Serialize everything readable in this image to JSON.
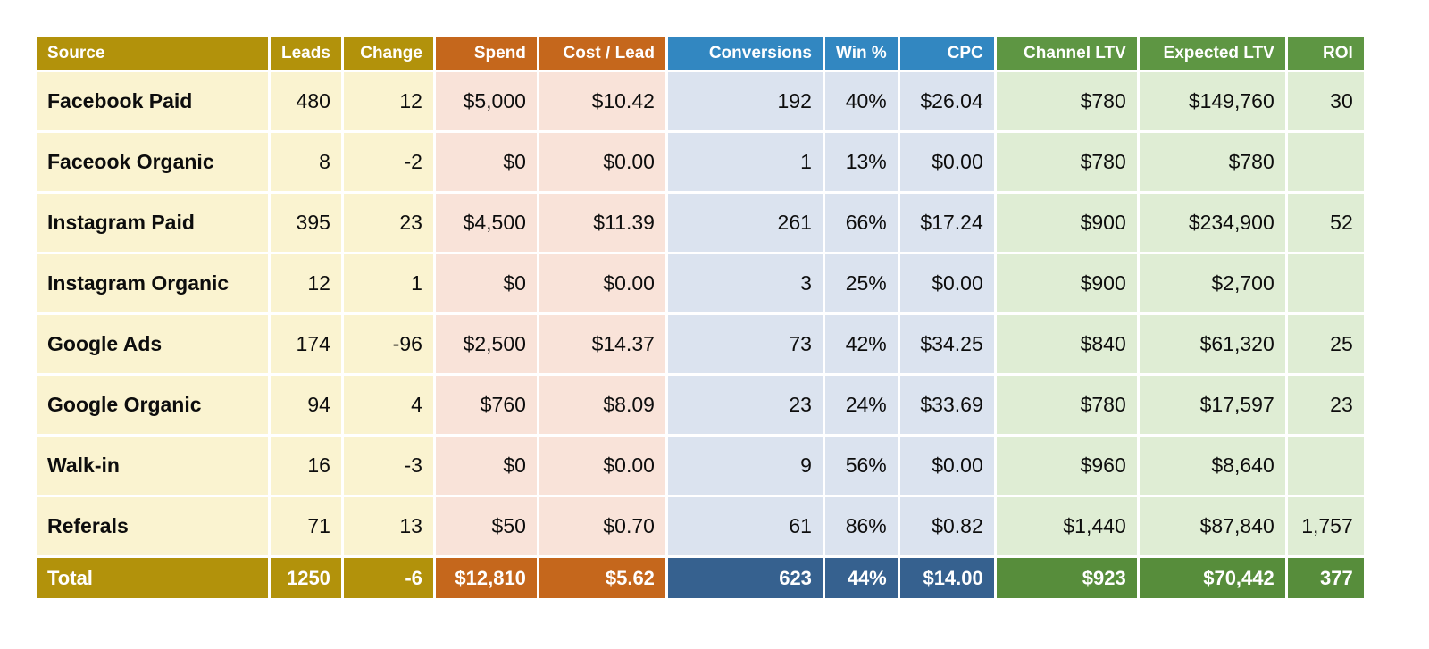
{
  "table": {
    "columns": [
      {
        "label": "Source",
        "group": "gold"
      },
      {
        "label": "Leads",
        "group": "gold"
      },
      {
        "label": "Change",
        "group": "gold"
      },
      {
        "label": "Spend",
        "group": "orange"
      },
      {
        "label": "Cost / Lead",
        "group": "orange"
      },
      {
        "label": "Conversions",
        "group": "blue"
      },
      {
        "label": "Win %",
        "group": "blue"
      },
      {
        "label": "CPC",
        "group": "blue"
      },
      {
        "label": "Channel LTV",
        "group": "green"
      },
      {
        "label": "Expected LTV",
        "group": "green"
      },
      {
        "label": "ROI",
        "group": "green"
      }
    ],
    "rows": [
      [
        "Facebook Paid",
        "480",
        "12",
        "$5,000",
        "$10.42",
        "192",
        "40%",
        "$26.04",
        "$780",
        "$149,760",
        "30"
      ],
      [
        "Faceook Organic",
        "8",
        "-2",
        "$0",
        "$0.00",
        "1",
        "13%",
        "$0.00",
        "$780",
        "$780",
        ""
      ],
      [
        "Instagram Paid",
        "395",
        "23",
        "$4,500",
        "$11.39",
        "261",
        "66%",
        "$17.24",
        "$900",
        "$234,900",
        "52"
      ],
      [
        "Instagram Organic",
        "12",
        "1",
        "$0",
        "$0.00",
        "3",
        "25%",
        "$0.00",
        "$900",
        "$2,700",
        ""
      ],
      [
        "Google Ads",
        "174",
        "-96",
        "$2,500",
        "$14.37",
        "73",
        "42%",
        "$34.25",
        "$840",
        "$61,320",
        "25"
      ],
      [
        "Google Organic",
        "94",
        "4",
        "$760",
        "$8.09",
        "23",
        "24%",
        "$33.69",
        "$780",
        "$17,597",
        "23"
      ],
      [
        "Walk-in",
        "16",
        "-3",
        "$0",
        "$0.00",
        "9",
        "56%",
        "$0.00",
        "$960",
        "$8,640",
        ""
      ],
      [
        "Referals",
        "71",
        "13",
        "$50",
        "$0.70",
        "61",
        "86%",
        "$0.82",
        "$1,440",
        "$87,840",
        "1,757"
      ]
    ],
    "total": [
      "Total",
      "1250",
      "-6",
      "$12,810",
      "$5.62",
      "623",
      "44%",
      "$14.00",
      "$923",
      "$70,442",
      "377"
    ]
  },
  "colors": {
    "gold": "#B2920B",
    "gold_light": "#FAF3D0",
    "orange": "#C5671C",
    "orange_light": "#F9E3D9",
    "blue": "#3287C1",
    "blue_light": "#DBE3EF",
    "blue_total": "#36618F",
    "green": "#5E9643",
    "green_total": "#578D3B",
    "green_light": "#DFEDD4"
  },
  "chart_data": {
    "type": "table",
    "columns": [
      "Source",
      "Leads",
      "Change",
      "Spend",
      "Cost / Lead",
      "Conversions",
      "Win %",
      "CPC",
      "Channel LTV",
      "Expected LTV",
      "ROI"
    ],
    "rows": [
      [
        "Facebook Paid",
        480,
        12,
        "$5,000",
        "$10.42",
        192,
        "40%",
        "$26.04",
        "$780",
        "$149,760",
        30
      ],
      [
        "Faceook Organic",
        8,
        -2,
        "$0",
        "$0.00",
        1,
        "13%",
        "$0.00",
        "$780",
        "$780",
        null
      ],
      [
        "Instagram Paid",
        395,
        23,
        "$4,500",
        "$11.39",
        261,
        "66%",
        "$17.24",
        "$900",
        "$234,900",
        52
      ],
      [
        "Instagram Organic",
        12,
        1,
        "$0",
        "$0.00",
        3,
        "25%",
        "$0.00",
        "$900",
        "$2,700",
        null
      ],
      [
        "Google Ads",
        174,
        -96,
        "$2,500",
        "$14.37",
        73,
        "42%",
        "$34.25",
        "$840",
        "$61,320",
        25
      ],
      [
        "Google Organic",
        94,
        4,
        "$760",
        "$8.09",
        23,
        "24%",
        "$33.69",
        "$780",
        "$17,597",
        23
      ],
      [
        "Walk-in",
        16,
        -3,
        "$0",
        "$0.00",
        9,
        "56%",
        "$0.00",
        "$960",
        "$8,640",
        null
      ],
      [
        "Referals",
        71,
        13,
        "$50",
        "$0.70",
        61,
        "86%",
        "$0.82",
        "$1,440",
        "$87,840",
        1757
      ]
    ],
    "total_row": [
      "Total",
      1250,
      -6,
      "$12,810",
      "$5.62",
      623,
      "44%",
      "$14.00",
      "$923",
      "$70,442",
      377
    ],
    "column_groups": {
      "gold": [
        "Source",
        "Leads",
        "Change"
      ],
      "orange": [
        "Spend",
        "Cost / Lead"
      ],
      "blue": [
        "Conversions",
        "Win %",
        "CPC"
      ],
      "green": [
        "Channel LTV",
        "Expected LTV",
        "ROI"
      ]
    },
    "legend_position": "none",
    "grid": true
  }
}
